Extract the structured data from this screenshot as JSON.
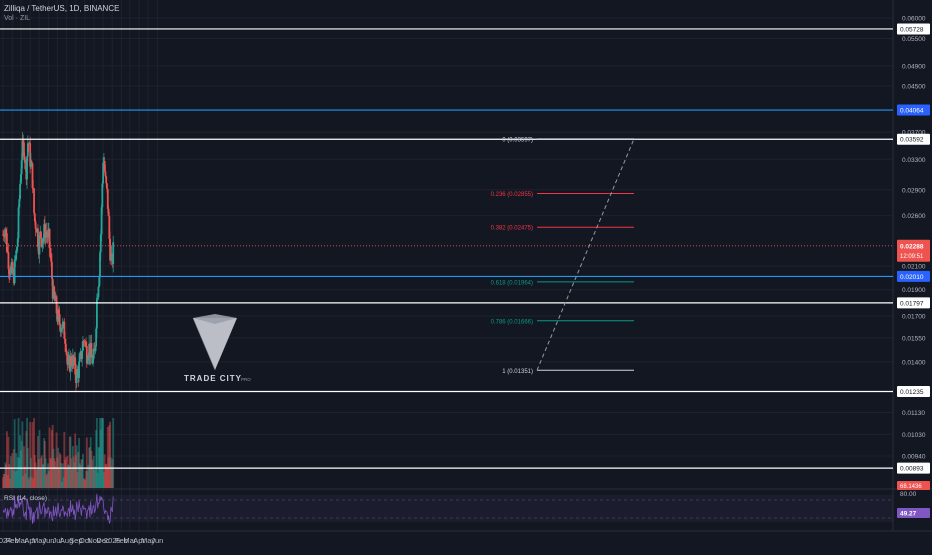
{
  "header": {
    "symbol_line": "Zilliqa / TetherUS, 1D, BINANCE",
    "volume_line": "Vol · ZIL"
  },
  "watermark": {
    "brand": "TRADE CITY",
    "suffix": "PRO"
  },
  "colors": {
    "background": "#131722",
    "grid": "#1e222d",
    "up": "#26a69a",
    "down": "#ef5350",
    "white_level": "#ffffff",
    "blue_level": "#2196f3",
    "red_fib": "#f23645",
    "green_fib": "#089981",
    "rsi_line": "#7e57c2",
    "text": "#b2b5be"
  },
  "chart_data": {
    "type": "candlestick",
    "instrument": "ZIL/USDT",
    "interval": "1D",
    "exchange": "BINANCE",
    "x_ticks": [
      "2024",
      "Feb",
      "Mar",
      "Apr",
      "May",
      "Jun",
      "Jul",
      "Aug",
      "Sep",
      "Oct",
      "Nov",
      "Dec",
      "2025",
      "Feb",
      "Mar",
      "Apr",
      "May",
      "Jun"
    ],
    "y_ticks": [
      "0.06000",
      "0.05500",
      "0.04900",
      "0.04500",
      "0.03700",
      "0.03300",
      "0.02900",
      "0.02600",
      "0.02100",
      "0.01900",
      "0.01700",
      "0.01550",
      "0.01400",
      "0.01130",
      "0.01030",
      "0.00940"
    ],
    "y_scale": "log",
    "horizontal_levels": [
      {
        "value": 0.05728,
        "label": "0.05728",
        "color": "white"
      },
      {
        "value": 0.04064,
        "label": "0.04064",
        "color": "blue"
      },
      {
        "value": 0.03592,
        "label": "0.03592",
        "color": "white"
      },
      {
        "value": 0.0201,
        "label": "0.02010",
        "color": "blue"
      },
      {
        "value": 0.01797,
        "label": "0.01797",
        "color": "white"
      },
      {
        "value": 0.01235,
        "label": "0.01235",
        "color": "white"
      },
      {
        "value": 0.00893,
        "label": "0.00893",
        "color": "white"
      }
    ],
    "current_price": {
      "value": 0.02288,
      "label": "0.02288",
      "countdown": "12:09:51"
    },
    "fibonacci": [
      {
        "label": "0 (0.03597)",
        "value": 0.03597,
        "color": "white"
      },
      {
        "label": "0.236 (0.02855)",
        "value": 0.02855,
        "color": "red"
      },
      {
        "label": "0.382 (0.02475)",
        "value": 0.02475,
        "color": "red"
      },
      {
        "label": "0.618 (0.01964)",
        "value": 0.01964,
        "color": "green"
      },
      {
        "label": "0.786 (0.01666)",
        "value": 0.01666,
        "color": "green"
      },
      {
        "label": "1 (0.01351)",
        "value": 0.01351,
        "color": "white"
      }
    ],
    "price_path": [
      [
        "2024-01-01",
        0.024
      ],
      [
        "2024-01-08",
        0.025
      ],
      [
        "2024-01-15",
        0.0225
      ],
      [
        "2024-01-22",
        0.021
      ],
      [
        "2024-01-29",
        0.0205
      ],
      [
        "2024-02-05",
        0.02
      ],
      [
        "2024-02-12",
        0.0215
      ],
      [
        "2024-02-19",
        0.0235
      ],
      [
        "2024-02-26",
        0.029
      ],
      [
        "2024-03-04",
        0.034
      ],
      [
        "2024-03-11",
        0.035
      ],
      [
        "2024-03-18",
        0.031
      ],
      [
        "2024-03-25",
        0.036
      ],
      [
        "2024-04-01",
        0.033
      ],
      [
        "2024-04-08",
        0.031
      ],
      [
        "2024-04-15",
        0.0255
      ],
      [
        "2024-04-22",
        0.025
      ],
      [
        "2024-04-29",
        0.023
      ],
      [
        "2024-05-06",
        0.024
      ],
      [
        "2024-05-13",
        0.0235
      ],
      [
        "2024-05-20",
        0.0245
      ],
      [
        "2024-05-27",
        0.024
      ],
      [
        "2024-06-03",
        0.0235
      ],
      [
        "2024-06-10",
        0.021
      ],
      [
        "2024-06-17",
        0.0185
      ],
      [
        "2024-06-24",
        0.018
      ],
      [
        "2024-07-01",
        0.017
      ],
      [
        "2024-07-08",
        0.0165
      ],
      [
        "2024-07-15",
        0.0165
      ],
      [
        "2024-07-22",
        0.016
      ],
      [
        "2024-07-29",
        0.0155
      ],
      [
        "2024-08-05",
        0.0135
      ],
      [
        "2024-08-12",
        0.014
      ],
      [
        "2024-08-19",
        0.0142
      ],
      [
        "2024-08-26",
        0.0138
      ],
      [
        "2024-09-02",
        0.0132
      ],
      [
        "2024-09-09",
        0.0135
      ],
      [
        "2024-09-16",
        0.014
      ],
      [
        "2024-09-23",
        0.015
      ],
      [
        "2024-09-30",
        0.0155
      ],
      [
        "2024-10-07",
        0.0145
      ],
      [
        "2024-10-14",
        0.015
      ],
      [
        "2024-10-21",
        0.0145
      ],
      [
        "2024-10-28",
        0.014
      ],
      [
        "2024-11-04",
        0.0145
      ],
      [
        "2024-11-11",
        0.0185
      ],
      [
        "2024-11-18",
        0.0205
      ],
      [
        "2024-11-25",
        0.025
      ],
      [
        "2024-12-02",
        0.034
      ],
      [
        "2024-12-09",
        0.03
      ],
      [
        "2024-12-16",
        0.028
      ],
      [
        "2024-12-23",
        0.023
      ],
      [
        "2024-12-30",
        0.021
      ],
      [
        "2025-01-06",
        0.0229
      ]
    ],
    "volume": {
      "label": "Vol · ZIL"
    },
    "rsi": {
      "label": "RSI (14, close)",
      "value": 49.27,
      "value_label": "49.27",
      "upper": 80.0,
      "upper_label": "80.00",
      "reference_label": "68.1436"
    }
  }
}
